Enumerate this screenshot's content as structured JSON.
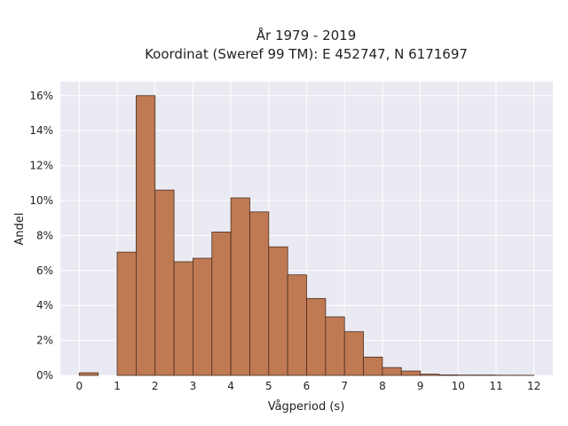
{
  "chart_data": {
    "type": "bar",
    "title_line1": "År 1979 - 2019",
    "title_line2": "Koordinat (Sweref 99 TM): E 452747, N 6171697",
    "xlabel": "Vågperiod (s)",
    "ylabel": "Andel",
    "xlim": [
      -0.5,
      12.5
    ],
    "ylim": [
      0,
      16.8
    ],
    "x_ticks": [
      0,
      1,
      2,
      3,
      4,
      5,
      6,
      7,
      8,
      9,
      10,
      11,
      12
    ],
    "y_ticks": [
      0,
      2,
      4,
      6,
      8,
      10,
      12,
      14,
      16
    ],
    "y_tick_labels": [
      "0%",
      "2%",
      "4%",
      "6%",
      "8%",
      "10%",
      "12%",
      "14%",
      "16%"
    ],
    "bin_width": 0.5,
    "bins": [
      {
        "x0": 0.0,
        "value": 0.15
      },
      {
        "x0": 1.0,
        "value": 7.05
      },
      {
        "x0": 1.5,
        "value": 16.0
      },
      {
        "x0": 2.0,
        "value": 10.6
      },
      {
        "x0": 2.5,
        "value": 6.5
      },
      {
        "x0": 3.0,
        "value": 6.7
      },
      {
        "x0": 3.5,
        "value": 8.2
      },
      {
        "x0": 4.0,
        "value": 10.15
      },
      {
        "x0": 4.5,
        "value": 9.35
      },
      {
        "x0": 5.0,
        "value": 7.35
      },
      {
        "x0": 5.5,
        "value": 5.75
      },
      {
        "x0": 6.0,
        "value": 4.4
      },
      {
        "x0": 6.5,
        "value": 3.35
      },
      {
        "x0": 7.0,
        "value": 2.5
      },
      {
        "x0": 7.5,
        "value": 1.05
      },
      {
        "x0": 8.0,
        "value": 0.45
      },
      {
        "x0": 8.5,
        "value": 0.25
      },
      {
        "x0": 9.0,
        "value": 0.07
      },
      {
        "x0": 9.5,
        "value": 0.03
      },
      {
        "x0": 10.0,
        "value": 0.02
      },
      {
        "x0": 10.5,
        "value": 0.02
      },
      {
        "x0": 11.0,
        "value": 0.01
      },
      {
        "x0": 11.5,
        "value": 0.01
      }
    ],
    "colors": {
      "bar_fill": "#bf7a54",
      "bar_edge": "#4a2e1f",
      "plot_background": "#eaeaf2",
      "grid": "#ffffff"
    },
    "grid": true
  }
}
